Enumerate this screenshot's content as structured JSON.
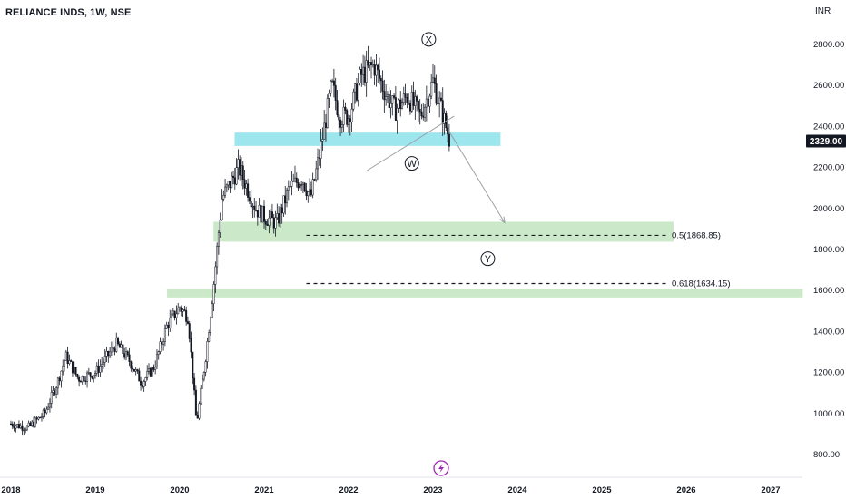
{
  "header": {
    "symbol_title": "RELIANCE INDS, 1W, NSE",
    "currency": "INR"
  },
  "colors": {
    "candle": "#131722",
    "zone_blue": "#9ee6ee",
    "zone_green": "#cbe9c8",
    "projection_line": "#9aa0a6",
    "price_tag_bg": "#131722"
  },
  "icons": {
    "event_badge": "lightning-icon"
  },
  "chart_data": {
    "type": "candlestick",
    "x_ticks": [
      "2018",
      "2019",
      "2020",
      "2021",
      "2022",
      "2023",
      "2024",
      "2025",
      "2026",
      "2027"
    ],
    "y_ticks": [
      "800.00",
      "1000.00",
      "1200.00",
      "1400.00",
      "1600.00",
      "1800.00",
      "2000.00",
      "2200.00",
      "2400.00",
      "2600.00",
      "2800.00"
    ],
    "ylim": [
      740,
      2900
    ],
    "last_price": "2329.00",
    "price_path": [
      [
        2018.0,
        950
      ],
      [
        2018.2,
        930
      ],
      [
        2018.4,
        1000
      ],
      [
        2018.55,
        1150
      ],
      [
        2018.65,
        1280
      ],
      [
        2018.8,
        1170
      ],
      [
        2019.0,
        1200
      ],
      [
        2019.25,
        1340
      ],
      [
        2019.4,
        1260
      ],
      [
        2019.55,
        1150
      ],
      [
        2019.7,
        1230
      ],
      [
        2019.85,
        1430
      ],
      [
        2020.0,
        1520
      ],
      [
        2020.1,
        1470
      ],
      [
        2020.2,
        950
      ],
      [
        2020.3,
        1250
      ],
      [
        2020.4,
        1620
      ],
      [
        2020.5,
        2050
      ],
      [
        2020.7,
        2200
      ],
      [
        2020.8,
        2100
      ],
      [
        2020.9,
        2000
      ],
      [
        2021.0,
        1960
      ],
      [
        2021.15,
        1930
      ],
      [
        2021.3,
        2100
      ],
      [
        2021.45,
        2150
      ],
      [
        2021.55,
        2050
      ],
      [
        2021.65,
        2250
      ],
      [
        2021.8,
        2600
      ],
      [
        2021.9,
        2450
      ],
      [
        2022.0,
        2450
      ],
      [
        2022.15,
        2650
      ],
      [
        2022.3,
        2700
      ],
      [
        2022.45,
        2550
      ],
      [
        2022.55,
        2480
      ],
      [
        2022.7,
        2550
      ],
      [
        2022.85,
        2450
      ],
      [
        2023.0,
        2620
      ],
      [
        2023.1,
        2480
      ],
      [
        2023.2,
        2329
      ]
    ],
    "zones": [
      {
        "color": "blue",
        "x": [
          2020.65,
          2023.8
        ],
        "y": [
          2305,
          2370
        ]
      },
      {
        "color": "green",
        "x": [
          2020.4,
          2025.85
        ],
        "y": [
          1838,
          1935
        ]
      },
      {
        "color": "green",
        "x": [
          2019.85,
          2027.38
        ],
        "y": [
          1566,
          1608
        ]
      }
    ],
    "fib_levels": [
      {
        "label": "0.5(1868.85)",
        "value": 1868.85,
        "x": [
          2021.5,
          2025.85
        ]
      },
      {
        "label": "0.618(1634.15)",
        "value": 1634.15,
        "x": [
          2021.5,
          2025.85
        ]
      }
    ],
    "trendline": [
      [
        2022.2,
        2180
      ],
      [
        2023.25,
        2450
      ]
    ],
    "projection": [
      [
        2023.2,
        2370
      ],
      [
        2023.85,
        1930
      ]
    ],
    "wave_labels": [
      {
        "text": "X",
        "x": 2022.95,
        "y": 2825
      },
      {
        "text": "W",
        "x": 2022.75,
        "y": 2220
      },
      {
        "text": "Y",
        "x": 2023.65,
        "y": 1755
      }
    ]
  }
}
